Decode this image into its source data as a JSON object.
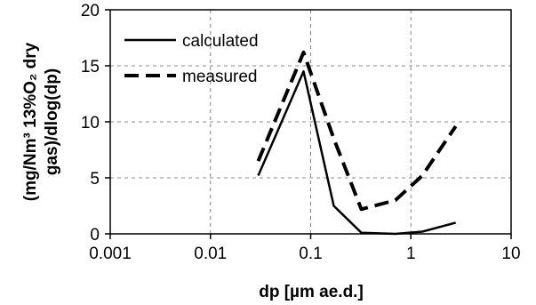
{
  "chart_data": {
    "type": "line",
    "xscale": "log",
    "xlim": [
      0.001,
      10
    ],
    "ylim": [
      0,
      20
    ],
    "x_ticks": [
      "0.001",
      "0.01",
      "0.1",
      "1",
      "10"
    ],
    "y_ticks": [
      "0",
      "5",
      "10",
      "15",
      "20"
    ],
    "xlabel": "dp [µm ae.d.]",
    "ylabel_lines": [
      "(mg/Nm³ 13%O₂ dry",
      "gas)/dlog(dp)"
    ],
    "grid": true,
    "legend_position": "top-left",
    "series": [
      {
        "name": "calculated",
        "style": "solid",
        "color": "#000000",
        "x": [
          0.03,
          0.085,
          0.17,
          0.32,
          0.7,
          1.3,
          2.8
        ],
        "y": [
          5.2,
          14.5,
          2.5,
          0.1,
          0.0,
          0.2,
          1.0
        ]
      },
      {
        "name": "measured",
        "style": "dashed",
        "color": "#000000",
        "x": [
          0.03,
          0.085,
          0.17,
          0.32,
          0.7,
          1.3,
          2.8
        ],
        "y": [
          6.5,
          16.2,
          8.5,
          2.2,
          3.0,
          5.2,
          9.6
        ]
      }
    ]
  }
}
